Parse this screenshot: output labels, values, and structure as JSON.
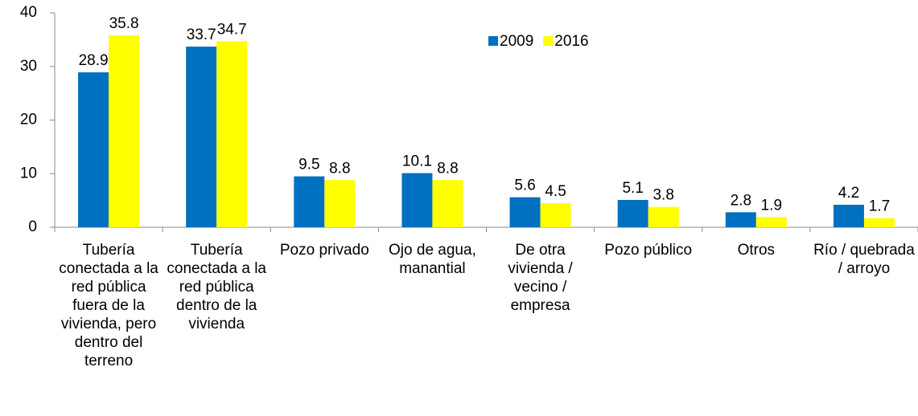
{
  "chart_data": {
    "type": "bar",
    "categories": [
      "Tubería conectada a la red pública fuera de la vivienda, pero dentro del terreno",
      "Tubería conectada a la red pública dentro de la vivienda",
      "Pozo privado",
      "Ojo de agua, manantial",
      "De otra vivienda / vecino / empresa",
      "Pozo público",
      "Otros",
      "Río / quebrada / arroyo"
    ],
    "series": [
      {
        "name": "2009",
        "color": "#0070C0",
        "values": [
          28.9,
          33.7,
          9.5,
          10.1,
          5.6,
          5.1,
          2.8,
          4.2
        ]
      },
      {
        "name": "2016",
        "color": "#FFFF00",
        "values": [
          35.8,
          34.7,
          8.8,
          8.8,
          4.5,
          3.8,
          1.9,
          1.7
        ]
      }
    ],
    "ylim": [
      0,
      40
    ],
    "yticks": [
      0,
      10,
      20,
      30,
      40
    ],
    "grid": false,
    "legend": "top"
  }
}
